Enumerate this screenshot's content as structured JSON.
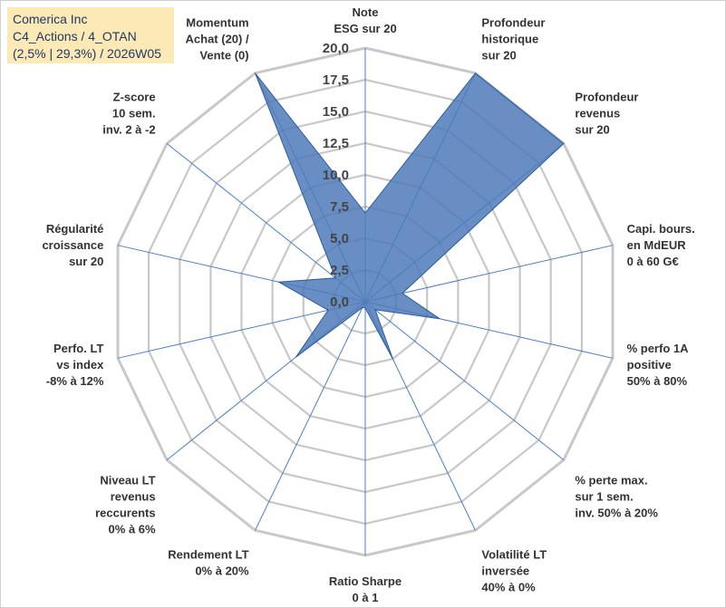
{
  "title_box": {
    "line1": "Comerica Inc",
    "line2": "C4_Actions / 4_OTAN",
    "line3": "(2,5% | 29,3%) / 2026W05"
  },
  "colors": {
    "fill": "#4f7ab8",
    "stroke": "#2e5c9e",
    "grid": "#c8c8c8",
    "spoke": "#4a7fc8",
    "title_bg": "#fde9b6",
    "title_text": "#1f3864"
  },
  "chart_data": {
    "type": "radar",
    "rmin": 0,
    "rmax": 20,
    "tick_step": 2.5,
    "tick_labels": [
      "0,0",
      "2,5",
      "5,0",
      "7,5",
      "10,0",
      "12,5",
      "15,0",
      "17,5",
      "20,0"
    ],
    "categories": [
      [
        "Note",
        "ESG sur 20"
      ],
      [
        "Profondeur",
        "historique",
        "sur 20"
      ],
      [
        "Profondeur",
        "revenus",
        "sur 20"
      ],
      [
        "Capi. bours.",
        "en MdEUR",
        "0 à 60 G€"
      ],
      [
        "% perfo 1A",
        "positive",
        "50% à 80%"
      ],
      [
        "% perte max.",
        "sur 1 sem.",
        "inv. 50% à 20%"
      ],
      [
        "Volatilité LT",
        "inversée",
        "40% à 0%"
      ],
      [
        "Ratio Sharpe",
        "0 à 1"
      ],
      [
        "Rendement LT",
        "0% à 20%"
      ],
      [
        "Niveau LT",
        "revenus",
        "reccurents",
        "0% à 6%"
      ],
      [
        "Perfo. LT",
        "vs index",
        "-8% à 12%"
      ],
      [
        "Régularité",
        "croissance",
        "sur 20"
      ],
      [
        "Z-score",
        "10 sem.",
        "inv. 2 à -2"
      ],
      [
        "Momentum",
        "Achat (20) /",
        "Vente (0)"
      ]
    ],
    "series": [
      {
        "name": "Comerica Inc",
        "values": [
          7.0,
          20.0,
          20.0,
          3.0,
          6.0,
          1.0,
          5.0,
          0.5,
          0.5,
          7.0,
          3.0,
          7.0,
          3.0,
          20.0
        ]
      }
    ]
  }
}
